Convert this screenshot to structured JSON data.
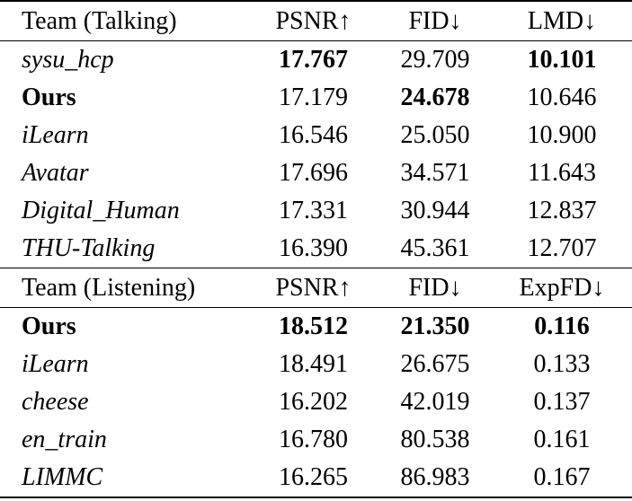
{
  "talking": {
    "header": [
      "Team (Talking)",
      "PSNR↑",
      "FID↓",
      "LMD↓"
    ],
    "rows": [
      {
        "team": "sysu_hcp",
        "psnr": "17.767",
        "fid": "29.709",
        "metric": "10.101",
        "team_italic": true,
        "team_bold": false,
        "bold": [
          true,
          false,
          true
        ]
      },
      {
        "team": "Ours",
        "psnr": "17.179",
        "fid": "24.678",
        "metric": "10.646",
        "team_italic": false,
        "team_bold": true,
        "bold": [
          false,
          true,
          false
        ]
      },
      {
        "team": "iLearn",
        "psnr": "16.546",
        "fid": "25.050",
        "metric": "10.900",
        "team_italic": true,
        "team_bold": false,
        "bold": [
          false,
          false,
          false
        ]
      },
      {
        "team": "Avatar",
        "psnr": "17.696",
        "fid": "34.571",
        "metric": "11.643",
        "team_italic": true,
        "team_bold": false,
        "bold": [
          false,
          false,
          false
        ]
      },
      {
        "team": "Digital_Human",
        "psnr": "17.331",
        "fid": "30.944",
        "metric": "12.837",
        "team_italic": true,
        "team_bold": false,
        "bold": [
          false,
          false,
          false
        ]
      },
      {
        "team": "THU-Talking",
        "psnr": "16.390",
        "fid": "45.361",
        "metric": "12.707",
        "team_italic": true,
        "team_bold": false,
        "bold": [
          false,
          false,
          false
        ]
      }
    ]
  },
  "listening": {
    "header": [
      "Team (Listening)",
      "PSNR↑",
      "FID↓",
      "ExpFD↓"
    ],
    "rows": [
      {
        "team": "Ours",
        "psnr": "18.512",
        "fid": "21.350",
        "metric": "0.116",
        "team_italic": false,
        "team_bold": true,
        "bold": [
          true,
          true,
          true
        ]
      },
      {
        "team": "iLearn",
        "psnr": "18.491",
        "fid": "26.675",
        "metric": "0.133",
        "team_italic": true,
        "team_bold": false,
        "bold": [
          false,
          false,
          false
        ]
      },
      {
        "team": "cheese",
        "psnr": "16.202",
        "fid": "42.019",
        "metric": "0.137",
        "team_italic": true,
        "team_bold": false,
        "bold": [
          false,
          false,
          false
        ]
      },
      {
        "team": "en_train",
        "psnr": "16.780",
        "fid": "80.538",
        "metric": "0.161",
        "team_italic": true,
        "team_bold": false,
        "bold": [
          false,
          false,
          false
        ]
      },
      {
        "team": "LIMMC",
        "psnr": "16.265",
        "fid": "86.983",
        "metric": "0.167",
        "team_italic": true,
        "team_bold": false,
        "bold": [
          false,
          false,
          false
        ]
      }
    ]
  }
}
